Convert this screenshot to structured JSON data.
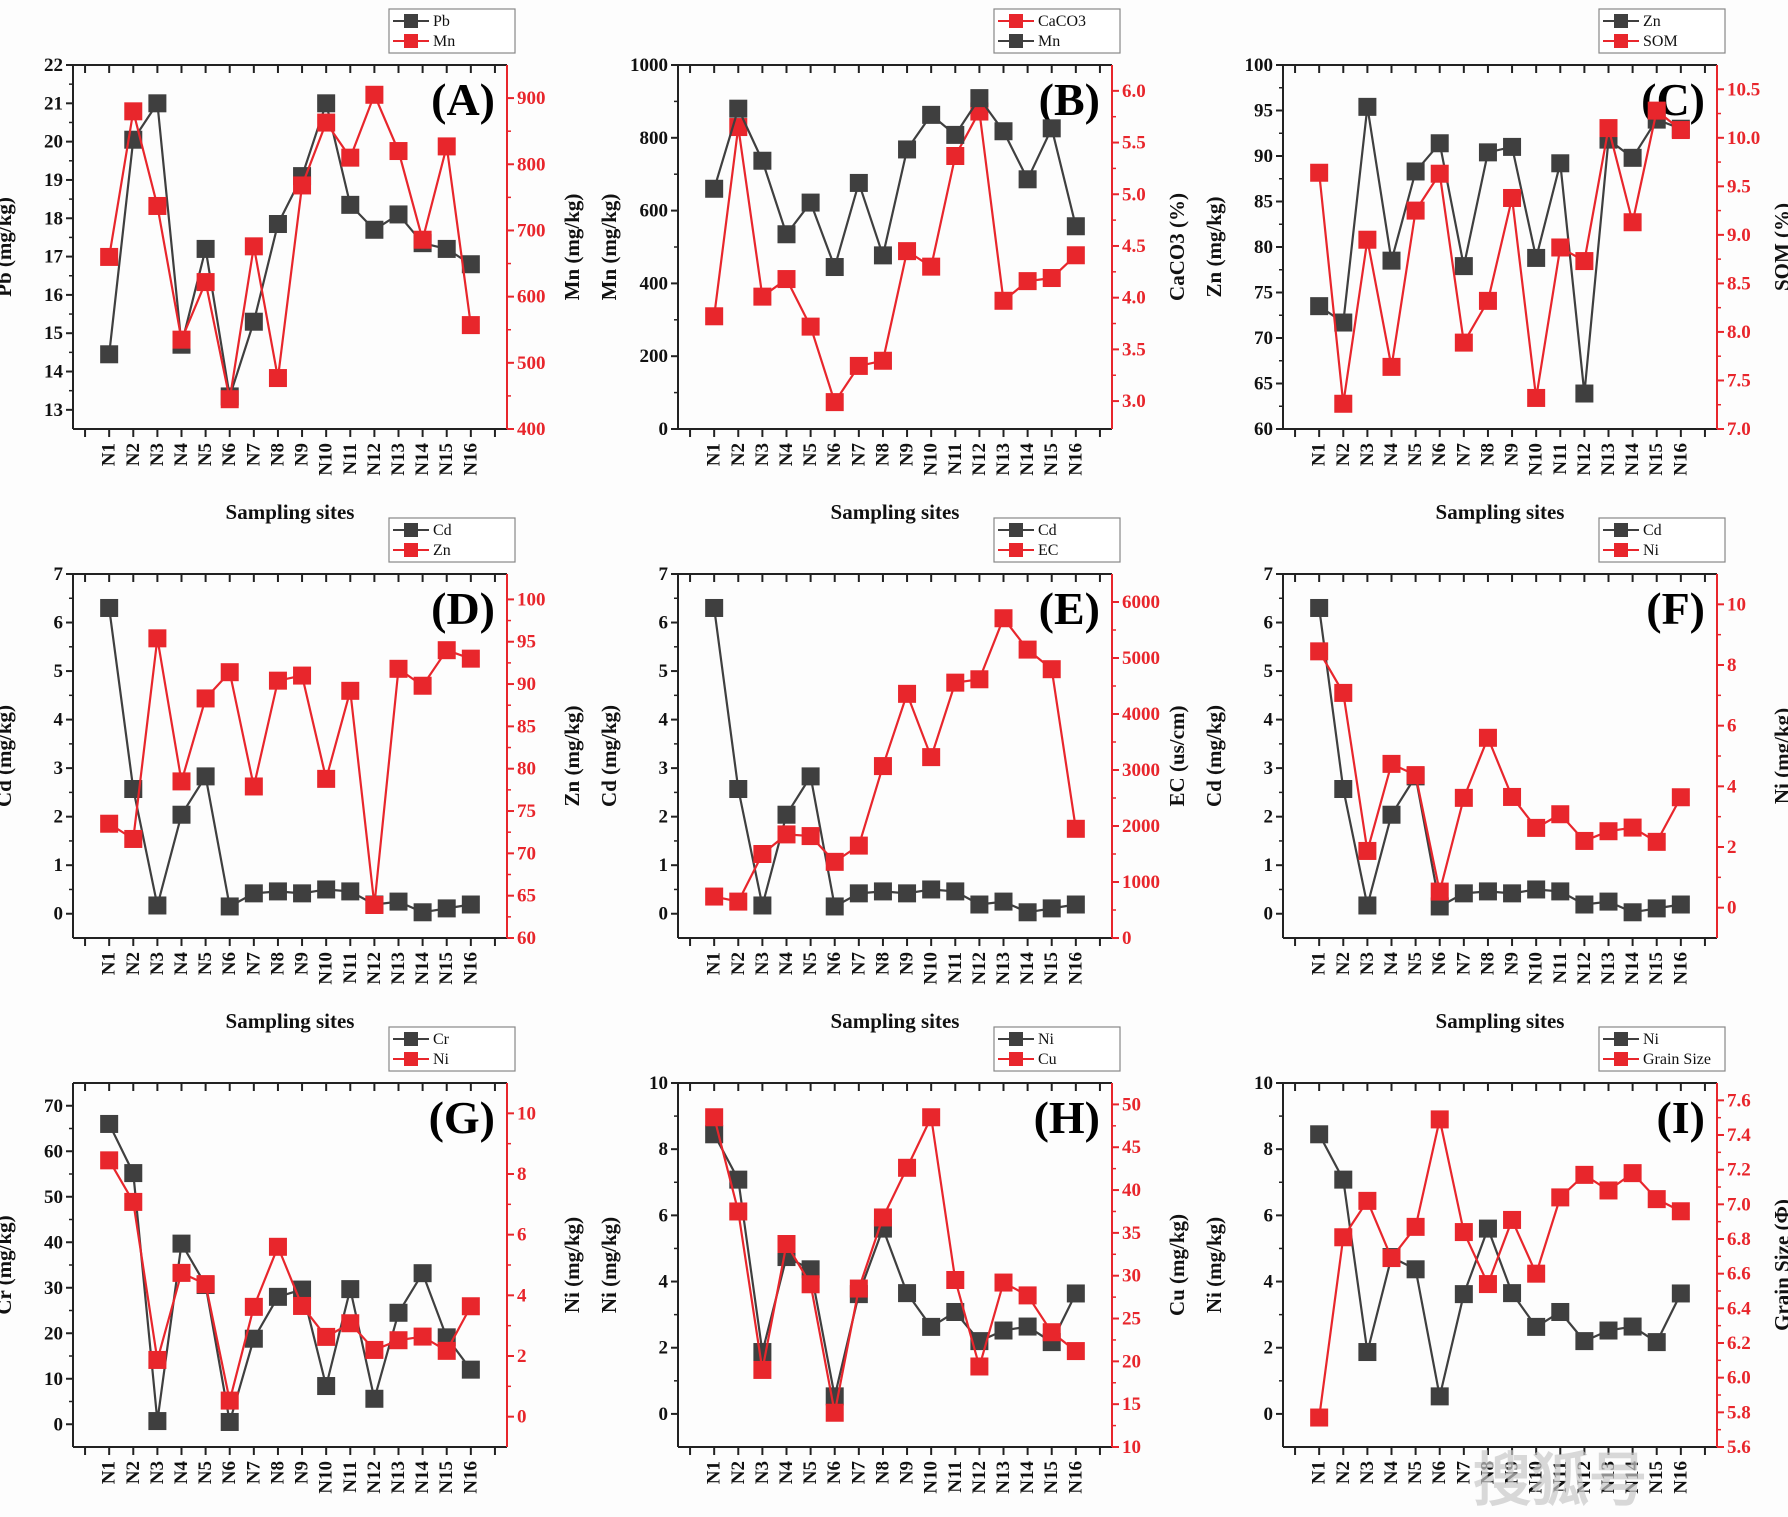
{
  "figure": {
    "watermark": "搜狐号",
    "colors": {
      "primary": "#3f3f3f",
      "secondary": "#e8262c"
    }
  },
  "chart_data": [
    {
      "type": "line",
      "panel_label": "(A)",
      "xlabel": "Sampling sites",
      "categories": [
        "N1",
        "N2",
        "N3",
        "N4",
        "N5",
        "N6",
        "N7",
        "N8",
        "N9",
        "N10",
        "N11",
        "N12",
        "N13",
        "N14",
        "N15",
        "N16"
      ],
      "left_axis": {
        "label": "Pb (mg/kg)",
        "range": [
          12.5,
          22
        ],
        "ticks": [
          13,
          14,
          15,
          16,
          17,
          18,
          19,
          20,
          21,
          22
        ]
      },
      "right_axis": {
        "label": "Mn (mg/kg)",
        "range": [
          400,
          950
        ],
        "ticks": [
          400,
          500,
          600,
          700,
          800,
          900
        ]
      },
      "legend": [
        "Pb",
        "Mn"
      ],
      "series": [
        {
          "name": "Pb",
          "axis": "left",
          "color": "#3f3f3f",
          "values": [
            14.45,
            20.05,
            21.0,
            14.7,
            17.2,
            13.35,
            15.3,
            17.85,
            19.1,
            21.0,
            18.35,
            17.7,
            18.1,
            17.35,
            17.2,
            16.8
          ]
        },
        {
          "name": "Mn",
          "axis": "right",
          "color": "#e8262c",
          "values": [
            660,
            880,
            737,
            535,
            622,
            445,
            676,
            477,
            768,
            863,
            810,
            905,
            820,
            686,
            827,
            557
          ]
        }
      ]
    },
    {
      "type": "line",
      "panel_label": "(B)",
      "xlabel": "Sampling sites",
      "categories": [
        "N1",
        "N2",
        "N3",
        "N4",
        "N5",
        "N6",
        "N7",
        "N8",
        "N9",
        "N10",
        "N11",
        "N12",
        "N13",
        "N14",
        "N15",
        "N16"
      ],
      "left_axis": {
        "label": "Mn (mg/kg)",
        "range": [
          0,
          1000
        ],
        "ticks": [
          0,
          200,
          400,
          600,
          800,
          1000
        ]
      },
      "right_axis": {
        "label": "CaCO3 (%)",
        "range": [
          2.73,
          6.25
        ],
        "ticks": [
          3.0,
          3.5,
          4.0,
          4.5,
          5.0,
          5.5,
          6.0
        ]
      },
      "legend": [
        "CaCO3",
        "Mn"
      ],
      "series": [
        {
          "name": "CaCO3",
          "axis": "right",
          "color": "#e8262c",
          "values": [
            3.82,
            5.65,
            4.01,
            4.18,
            3.72,
            2.99,
            3.34,
            3.39,
            4.45,
            4.3,
            5.37,
            5.8,
            3.97,
            4.16,
            4.19,
            4.41
          ]
        },
        {
          "name": "Mn",
          "axis": "left",
          "color": "#3f3f3f",
          "values": [
            660,
            880,
            737,
            535,
            622,
            445,
            676,
            477,
            768,
            863,
            808,
            909,
            818,
            686,
            826,
            557
          ]
        }
      ]
    },
    {
      "type": "line",
      "panel_label": "(C)",
      "xlabel": "Sampling sites",
      "categories": [
        "N1",
        "N2",
        "N3",
        "N4",
        "N5",
        "N6",
        "N7",
        "N8",
        "N9",
        "N10",
        "N11",
        "N12",
        "N13",
        "N14",
        "N15",
        "N16"
      ],
      "left_axis": {
        "label": "Zn (mg/kg)",
        "range": [
          60,
          100
        ],
        "ticks": [
          60,
          65,
          70,
          75,
          80,
          85,
          90,
          95,
          100
        ]
      },
      "right_axis": {
        "label": "SOM (%)",
        "range": [
          7.0,
          10.75
        ],
        "ticks": [
          7.0,
          7.5,
          8.0,
          8.5,
          9.0,
          9.5,
          10.0,
          10.5
        ]
      },
      "legend": [
        "Zn",
        "SOM"
      ],
      "series": [
        {
          "name": "Zn",
          "axis": "left",
          "color": "#3f3f3f",
          "values": [
            73.5,
            71.7,
            95.4,
            78.5,
            88.3,
            91.4,
            77.9,
            90.4,
            91.0,
            78.8,
            89.2,
            63.9,
            91.8,
            89.8,
            94.0,
            93.0
          ]
        },
        {
          "name": "SOM",
          "axis": "right",
          "color": "#e8262c",
          "values": [
            9.64,
            7.26,
            8.95,
            7.64,
            9.25,
            9.63,
            7.89,
            8.32,
            9.38,
            7.32,
            8.87,
            8.73,
            10.1,
            9.13,
            10.28,
            10.08
          ]
        }
      ]
    },
    {
      "type": "line",
      "panel_label": "(D)",
      "xlabel": "Sampling sites",
      "categories": [
        "N1",
        "N2",
        "N3",
        "N4",
        "N5",
        "N6",
        "N7",
        "N8",
        "N9",
        "N10",
        "N11",
        "N12",
        "N13",
        "N14",
        "N15",
        "N16"
      ],
      "left_axis": {
        "label": "Cd (mg/kg)",
        "range": [
          -0.5,
          7
        ],
        "ticks": [
          0,
          1,
          2,
          3,
          4,
          5,
          6,
          7
        ]
      },
      "right_axis": {
        "label": "Zn (mg/kg)",
        "range": [
          60,
          103
        ],
        "ticks": [
          60,
          65,
          70,
          75,
          80,
          85,
          90,
          95,
          100
        ]
      },
      "legend": [
        "Cd",
        "Zn"
      ],
      "series": [
        {
          "name": "Cd",
          "axis": "left",
          "color": "#3f3f3f",
          "values": [
            6.3,
            2.57,
            0.17,
            2.04,
            2.83,
            0.15,
            0.42,
            0.46,
            0.42,
            0.5,
            0.46,
            0.19,
            0.25,
            0.03,
            0.11,
            0.19
          ]
        },
        {
          "name": "Zn",
          "axis": "right",
          "color": "#e8262c",
          "values": [
            73.5,
            71.7,
            95.4,
            78.5,
            88.3,
            91.4,
            77.9,
            90.4,
            91.0,
            78.8,
            89.2,
            63.9,
            91.8,
            89.8,
            94.0,
            93.0
          ]
        }
      ]
    },
    {
      "type": "line",
      "panel_label": "(E)",
      "xlabel": "Sampling sites",
      "categories": [
        "N1",
        "N2",
        "N3",
        "N4",
        "N5",
        "N6",
        "N7",
        "N8",
        "N9",
        "N10",
        "N11",
        "N12",
        "N13",
        "N14",
        "N15",
        "N16"
      ],
      "left_axis": {
        "label": "Cd (mg/kg)",
        "range": [
          -0.5,
          7
        ],
        "ticks": [
          0,
          1,
          2,
          3,
          4,
          5,
          6,
          7
        ]
      },
      "right_axis": {
        "label": "EC (us/cm)",
        "range": [
          0,
          6500
        ],
        "ticks": [
          0,
          1000,
          2000,
          3000,
          4000,
          5000,
          6000
        ]
      },
      "legend": [
        "Cd",
        "EC"
      ],
      "series": [
        {
          "name": "Cd",
          "axis": "left",
          "color": "#3f3f3f",
          "values": [
            6.3,
            2.57,
            0.17,
            2.04,
            2.83,
            0.15,
            0.42,
            0.46,
            0.42,
            0.5,
            0.46,
            0.19,
            0.25,
            0.03,
            0.11,
            0.19
          ]
        },
        {
          "name": "EC",
          "axis": "right",
          "color": "#e8262c",
          "values": [
            740,
            650,
            1500,
            1850,
            1820,
            1360,
            1650,
            3070,
            4360,
            3230,
            4560,
            4620,
            5710,
            5150,
            4800,
            1950
          ]
        }
      ]
    },
    {
      "type": "line",
      "panel_label": "(F)",
      "xlabel": "Sampling sites",
      "categories": [
        "N1",
        "N2",
        "N3",
        "N4",
        "N5",
        "N6",
        "N7",
        "N8",
        "N9",
        "N10",
        "N11",
        "N12",
        "N13",
        "N14",
        "N15",
        "N16"
      ],
      "left_axis": {
        "label": "Cd (mg/kg)",
        "range": [
          -0.5,
          7
        ],
        "ticks": [
          0,
          1,
          2,
          3,
          4,
          5,
          6,
          7
        ]
      },
      "right_axis": {
        "label": "Ni (mg/kg)",
        "range": [
          -1,
          11
        ],
        "ticks": [
          0,
          2,
          4,
          6,
          8,
          10
        ]
      },
      "legend": [
        "Cd",
        "Ni"
      ],
      "series": [
        {
          "name": "Cd",
          "axis": "left",
          "color": "#3f3f3f",
          "values": [
            6.3,
            2.57,
            0.17,
            2.04,
            2.83,
            0.15,
            0.42,
            0.46,
            0.42,
            0.5,
            0.46,
            0.19,
            0.25,
            0.03,
            0.11,
            0.19
          ]
        },
        {
          "name": "Ni",
          "axis": "right",
          "color": "#e8262c",
          "values": [
            8.45,
            7.08,
            1.87,
            4.74,
            4.37,
            0.53,
            3.62,
            5.6,
            3.65,
            2.63,
            3.08,
            2.2,
            2.52,
            2.64,
            2.17,
            3.64
          ]
        }
      ]
    },
    {
      "type": "line",
      "panel_label": "(G)",
      "xlabel": "Sampling sites",
      "categories": [
        "N1",
        "N2",
        "N3",
        "N4",
        "N5",
        "N6",
        "N7",
        "N8",
        "N9",
        "N10",
        "N11",
        "N12",
        "N13",
        "N14",
        "N15",
        "N16"
      ],
      "left_axis": {
        "label": "Cr (mg/kg)",
        "range": [
          -5,
          75
        ],
        "ticks": [
          0,
          10,
          20,
          30,
          40,
          50,
          60,
          70
        ]
      },
      "right_axis": {
        "label": "Ni (mg/kg)",
        "range": [
          -1,
          11
        ],
        "ticks": [
          0,
          2,
          4,
          6,
          8,
          10
        ]
      },
      "legend": [
        "Cr",
        "Ni"
      ],
      "series": [
        {
          "name": "Cr",
          "axis": "left",
          "color": "#3f3f3f",
          "values": [
            66.0,
            55.2,
            0.7,
            39.7,
            30.6,
            0.5,
            18.8,
            28.0,
            29.6,
            8.4,
            29.7,
            5.6,
            24.5,
            33.2,
            19.1,
            12.0
          ]
        },
        {
          "name": "Ni",
          "axis": "right",
          "color": "#e8262c",
          "values": [
            8.45,
            7.08,
            1.87,
            4.74,
            4.37,
            0.53,
            3.62,
            5.6,
            3.65,
            2.63,
            3.08,
            2.2,
            2.52,
            2.64,
            2.17,
            3.64
          ]
        }
      ]
    },
    {
      "type": "line",
      "panel_label": "(H)",
      "xlabel": "Sampling sites",
      "categories": [
        "N1",
        "N2",
        "N3",
        "N4",
        "N5",
        "N6",
        "N7",
        "N8",
        "N9",
        "N10",
        "N11",
        "N12",
        "N13",
        "N14",
        "N15",
        "N16"
      ],
      "left_axis": {
        "label": "Ni (mg/kg)",
        "range": [
          -1,
          10
        ],
        "ticks": [
          0,
          2,
          4,
          6,
          8,
          10
        ]
      },
      "right_axis": {
        "label": "Cu (mg/kg)",
        "range": [
          10,
          52.5
        ],
        "ticks": [
          10,
          15,
          20,
          25,
          30,
          35,
          40,
          45,
          50
        ]
      },
      "legend": [
        "Ni",
        "Cu"
      ],
      "series": [
        {
          "name": "Ni",
          "axis": "left",
          "color": "#3f3f3f",
          "values": [
            8.45,
            7.08,
            1.87,
            4.74,
            4.37,
            0.53,
            3.62,
            5.6,
            3.65,
            2.63,
            3.08,
            2.2,
            2.52,
            2.64,
            2.17,
            3.64
          ]
        },
        {
          "name": "Cu",
          "axis": "right",
          "color": "#e8262c",
          "values": [
            48.5,
            37.5,
            19.0,
            33.7,
            29.0,
            14.0,
            28.5,
            36.8,
            42.6,
            48.5,
            29.5,
            19.4,
            29.2,
            27.7,
            23.4,
            21.2
          ]
        }
      ]
    },
    {
      "type": "line",
      "panel_label": "(I)",
      "xlabel": "Sampling sites",
      "categories": [
        "N1",
        "N2",
        "N3",
        "N4",
        "N5",
        "N6",
        "N7",
        "N8",
        "N9",
        "N10",
        "N11",
        "N12",
        "N13",
        "N14",
        "N15",
        "N16"
      ],
      "left_axis": {
        "label": "Ni (mg/kg)",
        "range": [
          -1,
          10
        ],
        "ticks": [
          0,
          2,
          4,
          6,
          8,
          10
        ]
      },
      "right_axis": {
        "label": "Grain Size (Φ)",
        "range": [
          5.6,
          7.7
        ],
        "ticks": [
          5.6,
          5.8,
          6.0,
          6.2,
          6.4,
          6.6,
          6.8,
          7.0,
          7.2,
          7.4,
          7.6
        ]
      },
      "legend": [
        "Ni",
        "Grain Size"
      ],
      "series": [
        {
          "name": "Ni",
          "axis": "left",
          "color": "#3f3f3f",
          "values": [
            8.45,
            7.08,
            1.87,
            4.74,
            4.37,
            0.53,
            3.62,
            5.6,
            3.65,
            2.63,
            3.08,
            2.2,
            2.52,
            2.64,
            2.17,
            3.64
          ]
        },
        {
          "name": "Grain Size",
          "axis": "right",
          "color": "#e8262c",
          "values": [
            5.77,
            6.81,
            7.02,
            6.69,
            6.87,
            7.49,
            6.84,
            6.54,
            6.91,
            6.6,
            7.04,
            7.17,
            7.08,
            7.18,
            7.03,
            6.96
          ]
        }
      ]
    }
  ]
}
